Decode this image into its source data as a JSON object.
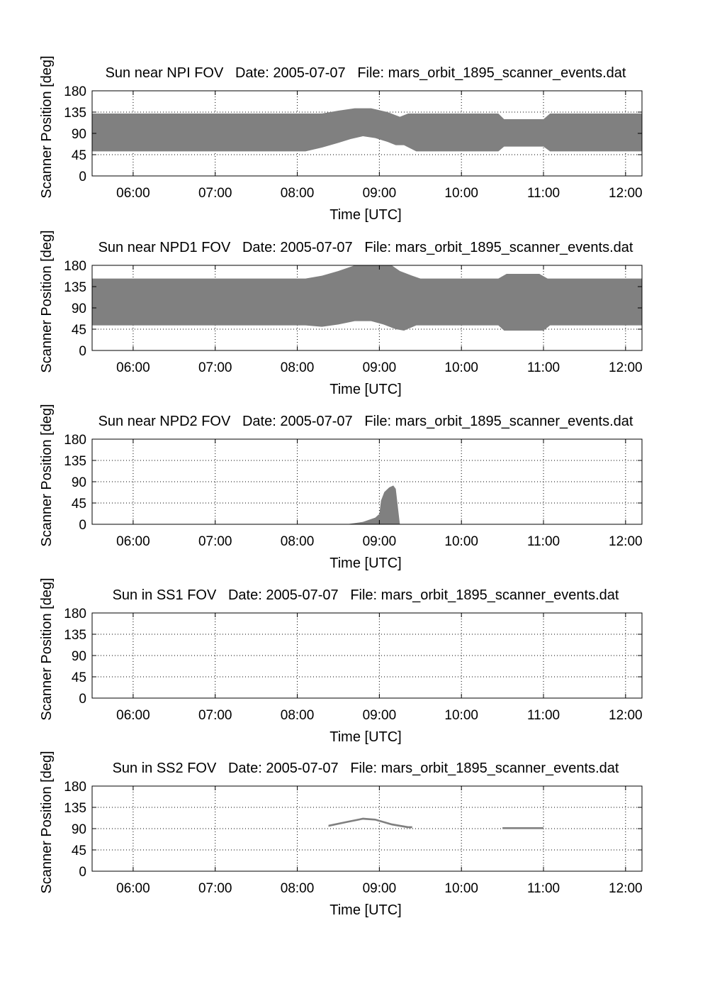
{
  "figure": {
    "date_label": "Date: 2005-07-07",
    "file_label": "File: mars_orbit_1895_scanner_events.dat"
  },
  "chart_data": [
    {
      "type": "area",
      "title": "Sun near NPI FOV",
      "date": "Date: 2005-07-07",
      "file": "File: mars_orbit_1895_scanner_events.dat",
      "xlabel": "Time [UTC]",
      "ylabel": "Scanner Position [deg]",
      "x_unit": "hours UTC",
      "xlim": [
        5.5,
        12.2
      ],
      "ylim": [
        0,
        180
      ],
      "xticks": [
        "06:00",
        "07:00",
        "08:00",
        "09:00",
        "10:00",
        "11:00",
        "12:00"
      ],
      "xtick_values": [
        6,
        7,
        8,
        9,
        10,
        11,
        12
      ],
      "yticks": [
        0,
        45,
        90,
        135,
        180
      ],
      "grid": true,
      "fill_color": "#808080",
      "series": [
        {
          "lower": [
            [
              5.5,
              52
            ],
            [
              8.1,
              52
            ],
            [
              8.3,
              60
            ],
            [
              8.5,
              70
            ],
            [
              8.65,
              78
            ],
            [
              8.8,
              84
            ],
            [
              8.95,
              80
            ],
            [
              9.1,
              72
            ],
            [
              9.2,
              65
            ],
            [
              9.3,
              65
            ],
            [
              9.45,
              52
            ],
            [
              10.45,
              52
            ],
            [
              10.52,
              62
            ],
            [
              11.0,
              62
            ],
            [
              11.08,
              52
            ],
            [
              12.2,
              52
            ]
          ],
          "upper": [
            [
              5.5,
              132
            ],
            [
              8.3,
              132
            ],
            [
              8.5,
              138
            ],
            [
              8.7,
              143
            ],
            [
              8.9,
              143
            ],
            [
              9.1,
              135
            ],
            [
              9.25,
              125
            ],
            [
              9.35,
              132
            ],
            [
              10.45,
              132
            ],
            [
              10.52,
              120
            ],
            [
              11.0,
              120
            ],
            [
              11.08,
              132
            ],
            [
              12.2,
              132
            ]
          ]
        }
      ]
    },
    {
      "type": "area",
      "title": "Sun near NPD1 FOV",
      "date": "Date: 2005-07-07",
      "file": "File: mars_orbit_1895_scanner_events.dat",
      "xlabel": "Time [UTC]",
      "ylabel": "Scanner Position [deg]",
      "x_unit": "hours UTC",
      "xlim": [
        5.5,
        12.2
      ],
      "ylim": [
        0,
        180
      ],
      "xticks": [
        "06:00",
        "07:00",
        "08:00",
        "09:00",
        "10:00",
        "11:00",
        "12:00"
      ],
      "xtick_values": [
        6,
        7,
        8,
        9,
        10,
        11,
        12
      ],
      "yticks": [
        0,
        45,
        90,
        135,
        180
      ],
      "grid": true,
      "fill_color": "#808080",
      "series": [
        {
          "lower": [
            [
              5.5,
              53
            ],
            [
              8.1,
              53
            ],
            [
              8.3,
              50
            ],
            [
              8.5,
              55
            ],
            [
              8.7,
              62
            ],
            [
              8.9,
              62
            ],
            [
              9.05,
              55
            ],
            [
              9.2,
              45
            ],
            [
              9.3,
              42
            ],
            [
              9.45,
              53
            ],
            [
              10.45,
              53
            ],
            [
              10.52,
              42
            ],
            [
              11.0,
              42
            ],
            [
              11.08,
              53
            ],
            [
              12.2,
              53
            ]
          ],
          "upper": [
            [
              5.5,
              152
            ],
            [
              8.1,
              152
            ],
            [
              8.3,
              158
            ],
            [
              8.5,
              168
            ],
            [
              8.7,
              180
            ],
            [
              9.15,
              180
            ],
            [
              9.25,
              168
            ],
            [
              9.4,
              158
            ],
            [
              9.5,
              152
            ],
            [
              10.45,
              152
            ],
            [
              10.55,
              162
            ],
            [
              10.95,
              162
            ],
            [
              11.05,
              152
            ],
            [
              12.2,
              152
            ]
          ]
        }
      ]
    },
    {
      "type": "area",
      "title": "Sun near NPD2 FOV",
      "date": "Date: 2005-07-07",
      "file": "File: mars_orbit_1895_scanner_events.dat",
      "xlabel": "Time [UTC]",
      "ylabel": "Scanner Position [deg]",
      "x_unit": "hours UTC",
      "xlim": [
        5.5,
        12.2
      ],
      "ylim": [
        0,
        180
      ],
      "xticks": [
        "06:00",
        "07:00",
        "08:00",
        "09:00",
        "10:00",
        "11:00",
        "12:00"
      ],
      "xtick_values": [
        6,
        7,
        8,
        9,
        10,
        11,
        12
      ],
      "yticks": [
        0,
        45,
        90,
        135,
        180
      ],
      "grid": true,
      "fill_color": "#808080",
      "series": [
        {
          "lower": [
            [
              8.6,
              0
            ],
            [
              9.25,
              0
            ]
          ],
          "upper": [
            [
              8.6,
              0
            ],
            [
              8.8,
              5
            ],
            [
              8.95,
              14
            ],
            [
              9.0,
              22
            ],
            [
              9.02,
              50
            ],
            [
              9.06,
              68
            ],
            [
              9.12,
              78
            ],
            [
              9.17,
              82
            ],
            [
              9.2,
              75
            ],
            [
              9.22,
              45
            ],
            [
              9.25,
              0
            ]
          ]
        }
      ]
    },
    {
      "type": "area",
      "title": "Sun in SS1 FOV",
      "date": "Date: 2005-07-07",
      "file": "File: mars_orbit_1895_scanner_events.dat",
      "xlabel": "Time [UTC]",
      "ylabel": "Scanner Position [deg]",
      "x_unit": "hours UTC",
      "xlim": [
        5.5,
        12.2
      ],
      "ylim": [
        0,
        180
      ],
      "xticks": [
        "06:00",
        "07:00",
        "08:00",
        "09:00",
        "10:00",
        "11:00",
        "12:00"
      ],
      "xtick_values": [
        6,
        7,
        8,
        9,
        10,
        11,
        12
      ],
      "yticks": [
        0,
        45,
        90,
        135,
        180
      ],
      "grid": true,
      "fill_color": "#808080",
      "series": []
    },
    {
      "type": "area",
      "title": "Sun in SS2 FOV",
      "date": "Date: 2005-07-07",
      "file": "File: mars_orbit_1895_scanner_events.dat",
      "xlabel": "Time [UTC]",
      "ylabel": "Scanner Position [deg]",
      "x_unit": "hours UTC",
      "xlim": [
        5.5,
        12.2
      ],
      "ylim": [
        0,
        180
      ],
      "xticks": [
        "06:00",
        "07:00",
        "08:00",
        "09:00",
        "10:00",
        "11:00",
        "12:00"
      ],
      "xtick_values": [
        6,
        7,
        8,
        9,
        10,
        11,
        12
      ],
      "yticks": [
        0,
        45,
        90,
        135,
        180
      ],
      "grid": true,
      "fill_color": "#808080",
      "series": [
        {
          "lower": [
            [
              8.38,
              94
            ],
            [
              8.6,
              102
            ],
            [
              8.8,
              109
            ],
            [
              8.95,
              107
            ],
            [
              9.15,
              97
            ],
            [
              9.35,
              91
            ],
            [
              9.4,
              91
            ]
          ],
          "upper": [
            [
              8.38,
              98
            ],
            [
              8.6,
              106
            ],
            [
              8.8,
              113
            ],
            [
              8.95,
              111
            ],
            [
              9.15,
              101
            ],
            [
              9.35,
              95
            ],
            [
              9.4,
              95
            ]
          ]
        },
        {
          "lower": [
            [
              10.5,
              89
            ],
            [
              11.0,
              89
            ]
          ],
          "upper": [
            [
              10.5,
              93
            ],
            [
              11.0,
              93
            ]
          ]
        }
      ]
    }
  ]
}
